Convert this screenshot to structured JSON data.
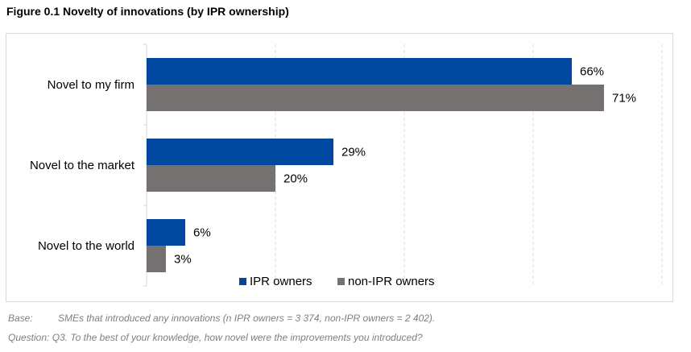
{
  "figure_title": "Figure 0.1 Novelty of innovations (by IPR ownership)",
  "colors": {
    "ipr": "#0047A0",
    "non_ipr": "#767171",
    "grid": "#d9d9d9"
  },
  "chart_data": {
    "type": "bar",
    "orientation": "horizontal",
    "title": "Figure 0.1 Novelty of innovations (by IPR ownership)",
    "categories": [
      "Novel to my firm",
      "Novel to the market",
      "Novel to the world"
    ],
    "series": [
      {
        "name": "IPR owners",
        "values": [
          66,
          29,
          6
        ],
        "labels": [
          "66%",
          "29%",
          "6%"
        ],
        "color": "#0047A0"
      },
      {
        "name": "non-IPR owners",
        "values": [
          71,
          20,
          3
        ],
        "labels": [
          "71%",
          "20%",
          "3%"
        ],
        "color": "#767171"
      }
    ],
    "xlim": [
      0,
      80
    ],
    "grid": true,
    "legend_position": "bottom"
  },
  "notes": {
    "base_label": "Base:",
    "base_text": "SMEs that introduced any innovations (n IPR owners = 3 374, non-IPR owners = 2 402).",
    "question_label": "Question:",
    "question_text": "Q3. To the best of your knowledge, how novel were the improvements you introduced?"
  }
}
